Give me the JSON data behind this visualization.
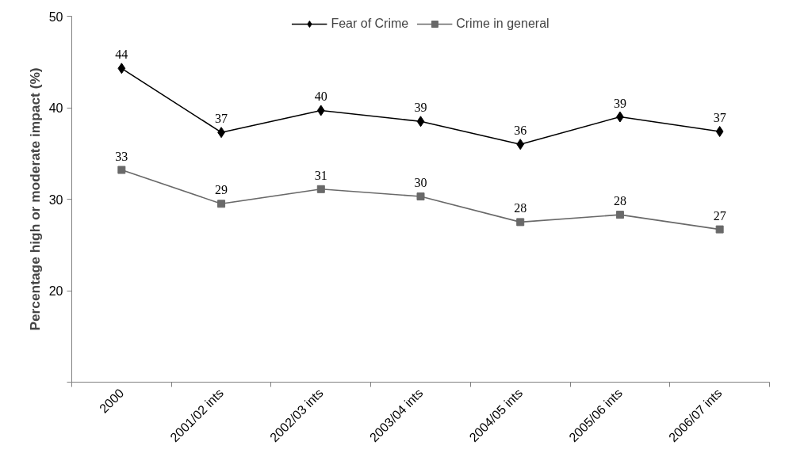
{
  "chart_data": {
    "type": "line",
    "ylabel": "Percentage high or moderate impact (%)",
    "categories": [
      "2000",
      "2001/02 ints",
      "2002/03 ints",
      "2003/04 ints",
      "2004/05 ints",
      "2005/06 ints",
      "2006/07 ints"
    ],
    "series": [
      {
        "name": "Fear of Crime",
        "color": "#000000",
        "marker": "diamond",
        "values": [
          44.3,
          37.3,
          39.7,
          38.5,
          36.0,
          39.0,
          37.4
        ],
        "value_labels": [
          "44",
          "37",
          "40",
          "39",
          "36",
          "39",
          "37"
        ]
      },
      {
        "name": "Crime in general",
        "color": "#696969",
        "marker": "square",
        "values": [
          33.2,
          29.5,
          31.1,
          30.3,
          27.5,
          28.3,
          26.7
        ],
        "value_labels": [
          "33",
          "29",
          "31",
          "30",
          "28",
          "28",
          "27"
        ]
      }
    ],
    "ylim": [
      10,
      50
    ],
    "yticks": [
      {
        "value": 10,
        "label": null
      },
      20,
      30,
      40,
      50
    ],
    "grid": false,
    "legend": "top",
    "line_style": "solid"
  }
}
